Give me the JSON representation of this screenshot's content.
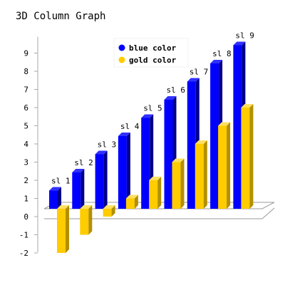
{
  "chart_data": {
    "type": "bar",
    "title": "3D Column Graph",
    "xlabel": "",
    "ylabel": "",
    "ylim": [
      -2,
      9
    ],
    "yticks": [
      -2,
      -1,
      0,
      1,
      2,
      3,
      4,
      5,
      6,
      7,
      8,
      9
    ],
    "categories": [
      "sl 1",
      "sl 2",
      "sl 3",
      "sl 4",
      "sl 5",
      "sl 6",
      "sl 7",
      "sl 8",
      "sl 9"
    ],
    "series": [
      {
        "name": "blue color",
        "values": [
          1,
          2,
          3,
          4,
          5,
          6,
          7,
          8,
          9
        ]
      },
      {
        "name": "gold color",
        "values": [
          -2,
          -1,
          0,
          1,
          2,
          3,
          4,
          5,
          6
        ]
      }
    ],
    "legend_position": "top-center",
    "grid": false
  },
  "colors": {
    "blue": "#0000ff",
    "blue_side": "#00008b",
    "blue_top": "#3030ff",
    "gold": "#ffcc00",
    "gold_side": "#b38f00",
    "gold_top": "#ffe060",
    "floor": "#eeeeee",
    "axis": "#aaaaaa"
  }
}
